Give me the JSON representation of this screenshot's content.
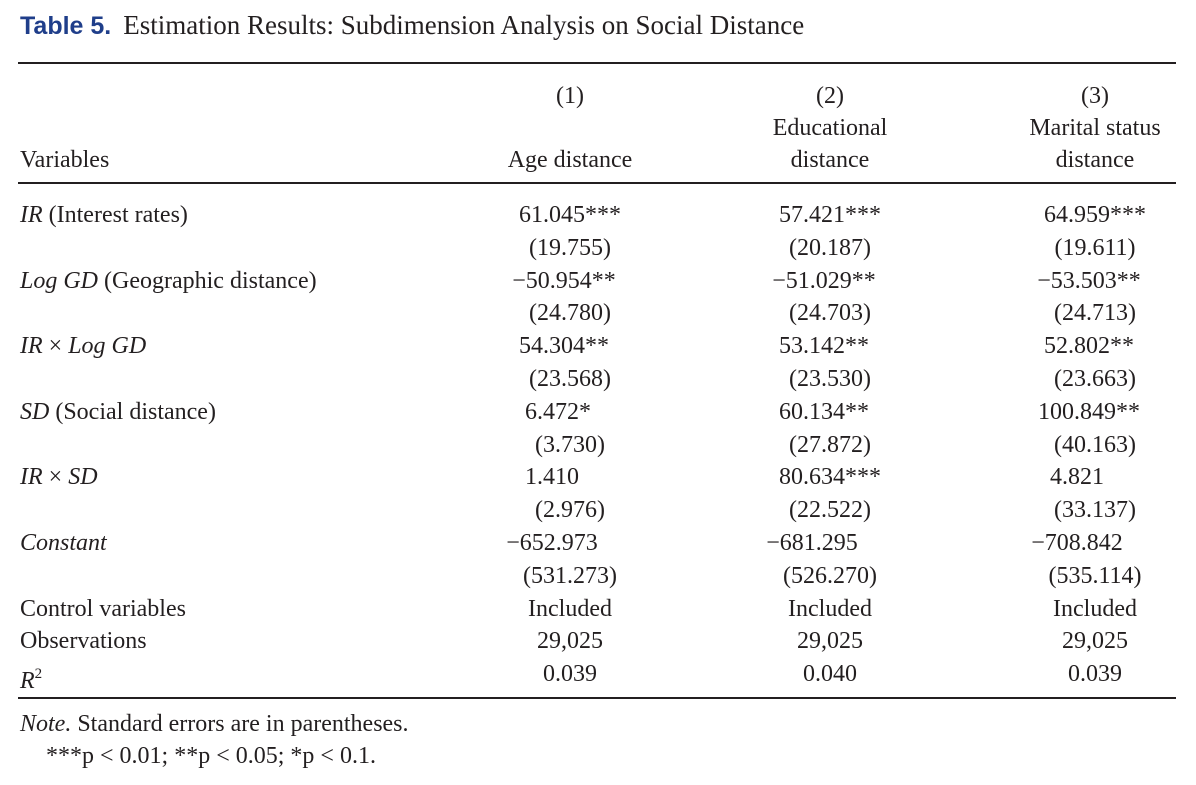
{
  "title": {
    "label": "Table 5.",
    "text": "Estimation Results: Subdimension Analysis on Social Distance"
  },
  "header": {
    "variables": "Variables",
    "columns": [
      {
        "number": "(1)",
        "line1": "",
        "line2": "Age distance"
      },
      {
        "number": "(2)",
        "line1": "Educational",
        "line2": "distance"
      },
      {
        "number": "(3)",
        "line1": "Marital status",
        "line2": "distance"
      }
    ]
  },
  "rows": [
    {
      "name_italic": "IR",
      "name_rest": " (Interest rates)",
      "values": [
        {
          "num": "61.045",
          "stars": "***"
        },
        {
          "num": "57.421",
          "stars": "***"
        },
        {
          "num": "64.959",
          "stars": "***"
        }
      ]
    },
    {
      "name_italic": "",
      "name_rest": "",
      "values": [
        {
          "num": "(19.755)",
          "stars": ""
        },
        {
          "num": "(20.187)",
          "stars": ""
        },
        {
          "num": "(19.611)",
          "stars": ""
        }
      ]
    },
    {
      "name_italic": "Log GD",
      "name_rest": " (Geographic distance)",
      "values": [
        {
          "num": "−50.954",
          "stars": "**"
        },
        {
          "num": "−51.029",
          "stars": "**"
        },
        {
          "num": "−53.503",
          "stars": "**"
        }
      ]
    },
    {
      "name_italic": "",
      "name_rest": "",
      "values": [
        {
          "num": "(24.780)",
          "stars": ""
        },
        {
          "num": "(24.703)",
          "stars": ""
        },
        {
          "num": "(24.713)",
          "stars": ""
        }
      ]
    },
    {
      "name_italic": "IR",
      "name_rest": " × ",
      "name_italic2": "Log GD",
      "values": [
        {
          "num": "54.304",
          "stars": "**"
        },
        {
          "num": "53.142",
          "stars": "**"
        },
        {
          "num": "52.802",
          "stars": "**"
        }
      ]
    },
    {
      "name_italic": "",
      "name_rest": "",
      "values": [
        {
          "num": "(23.568)",
          "stars": ""
        },
        {
          "num": "(23.530)",
          "stars": ""
        },
        {
          "num": "(23.663)",
          "stars": ""
        }
      ]
    },
    {
      "name_italic": "SD",
      "name_rest": " (Social distance)",
      "values": [
        {
          "num": "6.472",
          "stars": "*"
        },
        {
          "num": "60.134",
          "stars": "**"
        },
        {
          "num": "100.849",
          "stars": "**"
        }
      ]
    },
    {
      "name_italic": "",
      "name_rest": "",
      "values": [
        {
          "num": "(3.730)",
          "stars": ""
        },
        {
          "num": "(27.872)",
          "stars": ""
        },
        {
          "num": "(40.163)",
          "stars": ""
        }
      ]
    },
    {
      "name_italic": "IR",
      "name_rest": " × ",
      "name_italic2": "SD",
      "values": [
        {
          "num": "1.410",
          "stars": ""
        },
        {
          "num": "80.634",
          "stars": "***"
        },
        {
          "num": "4.821",
          "stars": ""
        }
      ]
    },
    {
      "name_italic": "",
      "name_rest": "",
      "values": [
        {
          "num": "(2.976)",
          "stars": ""
        },
        {
          "num": "(22.522)",
          "stars": ""
        },
        {
          "num": "(33.137)",
          "stars": ""
        }
      ]
    },
    {
      "name_italic": "Constant",
      "name_rest": "",
      "values": [
        {
          "num": "−652.973",
          "stars": ""
        },
        {
          "num": "−681.295",
          "stars": ""
        },
        {
          "num": "−708.842",
          "stars": ""
        }
      ]
    },
    {
      "name_italic": "",
      "name_rest": "",
      "values": [
        {
          "num": "(531.273)",
          "stars": ""
        },
        {
          "num": "(526.270)",
          "stars": ""
        },
        {
          "num": "(535.114)",
          "stars": ""
        }
      ]
    },
    {
      "name_italic": "",
      "name_rest": "Control variables",
      "values": [
        {
          "num": "Included",
          "stars": ""
        },
        {
          "num": "Included",
          "stars": ""
        },
        {
          "num": "Included",
          "stars": ""
        }
      ]
    },
    {
      "name_italic": "",
      "name_rest": "Observations",
      "values": [
        {
          "num": "29,025",
          "stars": ""
        },
        {
          "num": "29,025",
          "stars": ""
        },
        {
          "num": "29,025",
          "stars": ""
        }
      ]
    },
    {
      "name_italic": "R",
      "name_sup": "2",
      "name_rest": "",
      "values": [
        {
          "num": "0.039",
          "stars": ""
        },
        {
          "num": "0.040",
          "stars": ""
        },
        {
          "num": "0.039",
          "stars": ""
        }
      ]
    }
  ],
  "note": {
    "label": "Note.",
    "text": " Standard errors are in parentheses.",
    "significance": "***p < 0.01; **p < 0.05; *p < 0.1."
  },
  "colors": {
    "title_label": "#1f3e8a",
    "text": "#231f20"
  }
}
